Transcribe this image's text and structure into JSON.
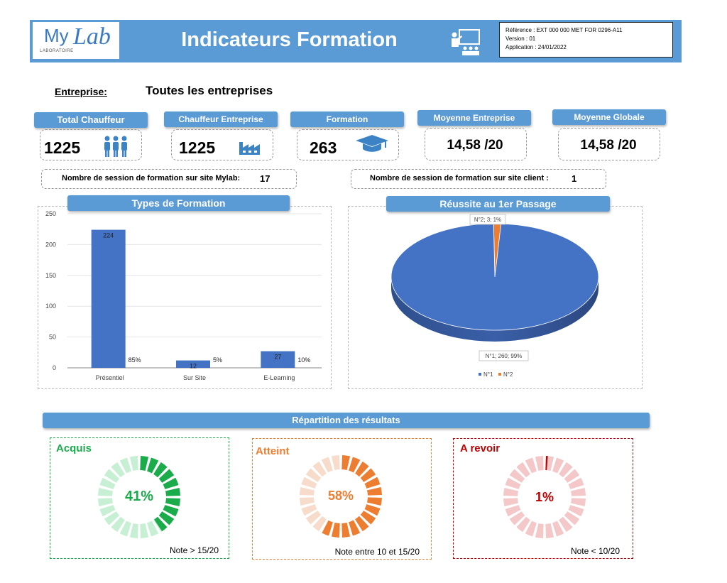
{
  "header": {
    "logo_my": "My",
    "logo_lab": "Lab",
    "logo_sub": "LABORATOIRE",
    "title": "Indicateurs Formation",
    "icon": "teacher-board-icon",
    "reference": "Référence : EXT 000 000 MET FOR 0296-A11",
    "version": "Version : 01",
    "application": "Application : 24/01/2022"
  },
  "entreprise": {
    "label": "Entreprise:",
    "value": "Toutes les entreprises"
  },
  "kpis": [
    {
      "label": "Total Chauffeur",
      "value": "1225",
      "icon": "people-icon"
    },
    {
      "label": "Chauffeur Entreprise",
      "value": "1225",
      "icon": "factory-icon"
    },
    {
      "label": "Formation",
      "value": "263",
      "icon": "graduation-cap-icon"
    },
    {
      "label": "Moyenne Entreprise",
      "value": "14,58 /20"
    },
    {
      "label": "Moyenne Globale",
      "value": "14,58 /20"
    }
  ],
  "sessions": {
    "mylab_label": "Nombre de session de formation sur site Mylab:",
    "mylab_value": "17",
    "client_label": "Nombre de session de formation sur site client :",
    "client_value": "1"
  },
  "colors": {
    "accent": "#5b9bd5",
    "bar": "#4472c4",
    "pie_orange": "#ed7d31",
    "green": "#1aab4b",
    "orange": "#ed7d31",
    "red": "#c00000"
  },
  "chart_data": [
    {
      "type": "bar",
      "title": "Types de Formation",
      "categories": [
        "Présentiel",
        "Sur Site",
        "E-Learning"
      ],
      "values": [
        224,
        12,
        27
      ],
      "percent_labels": [
        "85%",
        "5%",
        "10%"
      ],
      "ylim": [
        0,
        250
      ],
      "yticks": [
        0,
        50,
        100,
        150,
        200,
        250
      ],
      "grid": true
    },
    {
      "type": "pie",
      "title": "Réussite au 1er Passage",
      "labels": [
        "N°1",
        "N°2"
      ],
      "values": [
        260,
        3
      ],
      "percents": [
        99,
        1
      ],
      "slice_labels": [
        "N°1; 260; 99%",
        "N°2; 3; 1%"
      ],
      "colors": [
        "#4472c4",
        "#ed7d31"
      ],
      "legend": "bottom"
    }
  ],
  "results": {
    "title": "Répartition des résultats",
    "items": [
      {
        "label": "Acquis",
        "percent": 41,
        "percent_label": "41%",
        "note": "Note > 15/20",
        "color": "#1aab4b",
        "light": "#c6efd3"
      },
      {
        "label": "Atteint",
        "percent": 58,
        "percent_label": "58%",
        "note": "Note entre 10 et 15/20",
        "color": "#ed7d31",
        "light": "#f7dccb"
      },
      {
        "label": "A revoir",
        "percent": 1,
        "percent_label": "1%",
        "note": "Note < 10/20",
        "color": "#c00000",
        "light": "#f4c7c9"
      }
    ]
  }
}
